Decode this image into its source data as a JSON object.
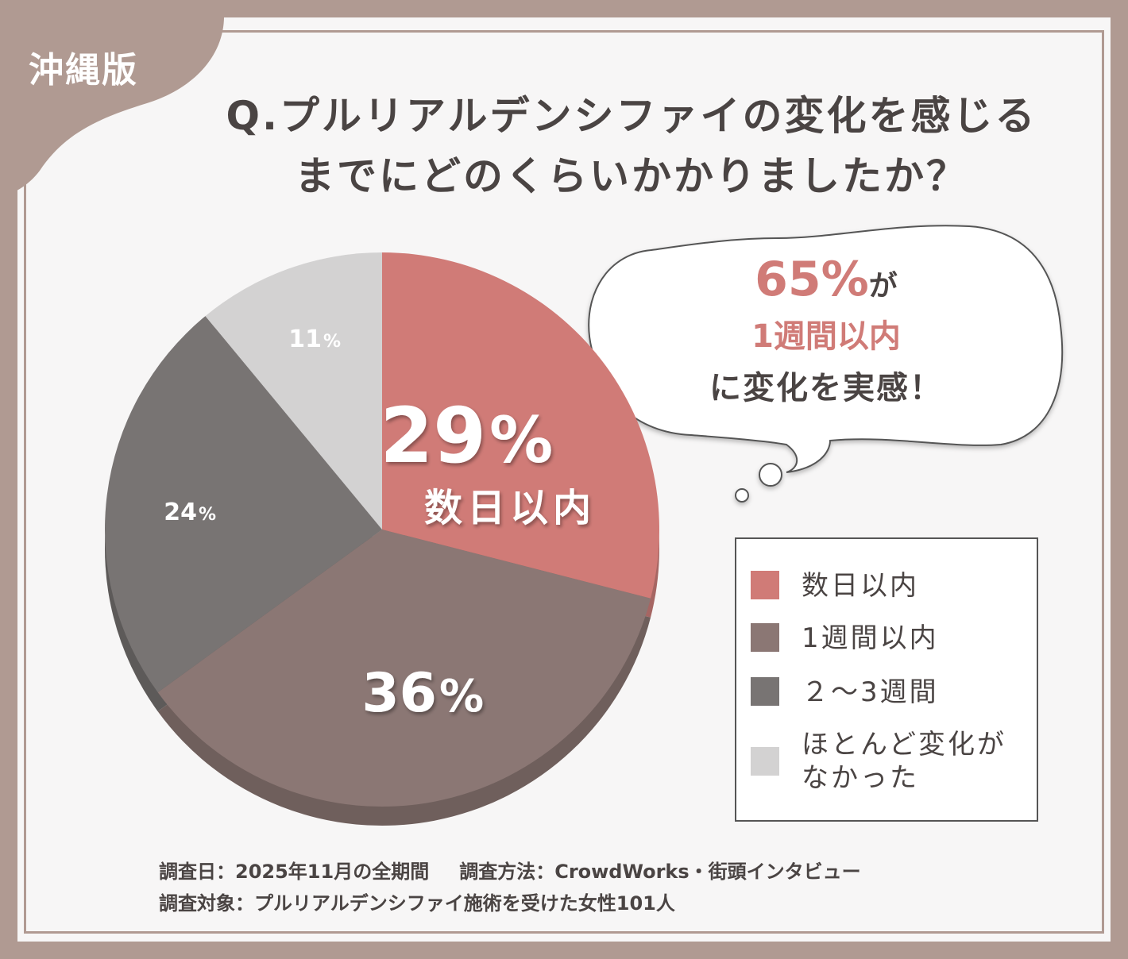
{
  "region_tag": "沖縄版",
  "title": {
    "line1": "Q.プルリアルデンシファイの変化を感じる",
    "line2": "までにどのくらいかかりましたか？"
  },
  "callout": {
    "percent": "65%",
    "particle": "が",
    "period": "1週間以内",
    "message": "に変化を実感！"
  },
  "footer": {
    "date_label": "調査日：2025年11月の全期間",
    "method_label": "調査方法：CrowdWorks・街頭インタビュー",
    "target_label": "調査対象：プルリアルデンシファイ施術を受けた女性101人"
  },
  "colors": {
    "frame": "#b09a92",
    "accent": "#d07b77",
    "text": "#4a4443"
  },
  "chart_data": {
    "type": "pie",
    "unit": "%",
    "legend_position": "right",
    "slices": [
      {
        "label": "数日以内",
        "value": 29,
        "color": "#d07b77",
        "shadow": "#a66663"
      },
      {
        "label": "1週間以内",
        "value": 36,
        "color": "#8b7774",
        "shadow": "#6f5f5c"
      },
      {
        "label": "２～3週間",
        "value": 24,
        "color": "#787473",
        "shadow": "#5d5a59"
      },
      {
        "label": "ほとんど変化がなかった",
        "value": 11,
        "color": "#d3d2d2",
        "shadow": "#a9a7a7"
      }
    ],
    "legend": [
      {
        "line1": "数日以内",
        "line2": ""
      },
      {
        "line1": "1週間以内",
        "line2": ""
      },
      {
        "line1": "２～3週間",
        "line2": ""
      },
      {
        "line1": "ほとんど変化が",
        "line2": "なかった"
      }
    ]
  }
}
